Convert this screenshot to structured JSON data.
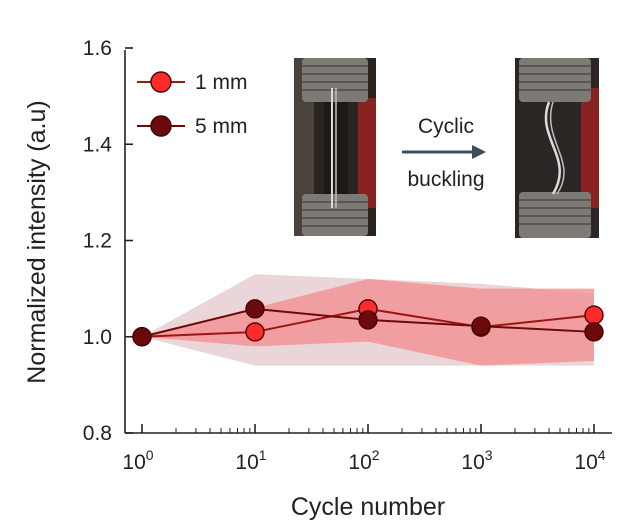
{
  "chart_data": {
    "type": "line",
    "xlabel": "Cycle number",
    "ylabel": "Normalized intensity (a.u)",
    "xscale": "log",
    "xlim": [
      1,
      10000
    ],
    "ylim": [
      0.8,
      1.6
    ],
    "x": [
      1,
      10,
      100,
      1000,
      10000
    ],
    "x_tick_labels": [
      {
        "base": "10",
        "exp": "0"
      },
      {
        "base": "10",
        "exp": "1"
      },
      {
        "base": "10",
        "exp": "2"
      },
      {
        "base": "10",
        "exp": "3"
      },
      {
        "base": "10",
        "exp": "4"
      }
    ],
    "y_ticks": [
      0.8,
      1.0,
      1.2,
      1.4,
      1.6
    ],
    "y_tick_labels": [
      "0.8",
      "1.0",
      "1.2",
      "1.4",
      "1.6"
    ],
    "series": [
      {
        "name": "1 mm",
        "values": [
          1.0,
          1.01,
          1.058,
          1.02,
          1.045
        ],
        "band_upper": [
          1.0,
          1.06,
          1.12,
          1.1,
          1.1
        ],
        "band_lower": [
          1.0,
          0.98,
          0.99,
          0.94,
          0.95
        ],
        "color": "#ff2b2b",
        "band_color": "#f28b8b"
      },
      {
        "name": "5 mm",
        "values": [
          1.0,
          1.058,
          1.035,
          1.022,
          1.01
        ],
        "band_upper": [
          1.0,
          1.13,
          1.12,
          1.11,
          1.09
        ],
        "band_lower": [
          1.0,
          0.94,
          0.94,
          0.94,
          0.94
        ],
        "color": "#6b0a0a",
        "band_color": "#e6cfd2"
      }
    ],
    "legend_position": "top-left",
    "grid": false
  },
  "inset": {
    "arrow_label_line1": "Cyclic",
    "arrow_label_line2": "buckling",
    "arrow_color": "#3d4d5c"
  }
}
